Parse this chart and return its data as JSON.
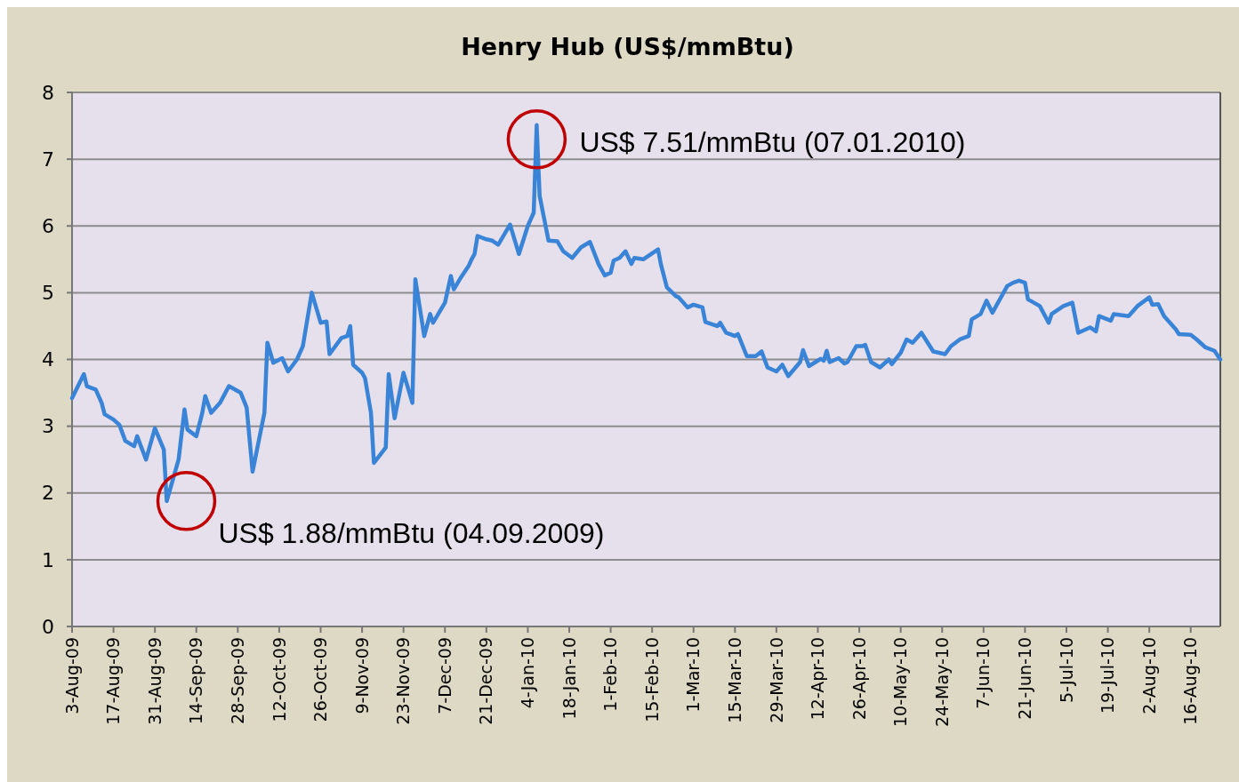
{
  "chart_data": {
    "type": "line",
    "title": "Henry Hub (US$/mmBtu)",
    "x": [
      "2009-08-03",
      "2009-08-05",
      "2009-08-07",
      "2009-08-08",
      "2009-08-11",
      "2009-08-13",
      "2009-08-14",
      "2009-08-17",
      "2009-08-19",
      "2009-08-21",
      "2009-08-24",
      "2009-08-25",
      "2009-08-28",
      "2009-08-31",
      "2009-09-03",
      "2009-09-04",
      "2009-09-08",
      "2009-09-10",
      "2009-09-11",
      "2009-09-14",
      "2009-09-16",
      "2009-09-17",
      "2009-09-19",
      "2009-09-22",
      "2009-09-25",
      "2009-09-29",
      "2009-10-01",
      "2009-10-03",
      "2009-10-07",
      "2009-10-08",
      "2009-10-10",
      "2009-10-13",
      "2009-10-15",
      "2009-10-18",
      "2009-10-20",
      "2009-10-23",
      "2009-10-26",
      "2009-10-28",
      "2009-10-29",
      "2009-11-02",
      "2009-11-04",
      "2009-11-05",
      "2009-11-06",
      "2009-11-09",
      "2009-11-10",
      "2009-11-12",
      "2009-11-13",
      "2009-11-17",
      "2009-11-18",
      "2009-11-20",
      "2009-11-23",
      "2009-11-26",
      "2009-11-27",
      "2009-11-30",
      "2009-12-02",
      "2009-12-03",
      "2009-12-07",
      "2009-12-09",
      "2009-12-10",
      "2009-12-12",
      "2009-12-15",
      "2009-12-16",
      "2009-12-17",
      "2009-12-18",
      "2009-12-21",
      "2009-12-23",
      "2009-12-25",
      "2009-12-29",
      "2010-01-01",
      "2010-01-04",
      "2010-01-06",
      "2010-01-07",
      "2010-01-08",
      "2010-01-11",
      "2010-01-14",
      "2010-01-16",
      "2010-01-19",
      "2010-01-22",
      "2010-01-25",
      "2010-01-28",
      "2010-01-30",
      "2010-02-01",
      "2010-02-02",
      "2010-02-04",
      "2010-02-06",
      "2010-02-08",
      "2010-02-09",
      "2010-02-12",
      "2010-02-17",
      "2010-02-18",
      "2010-02-20",
      "2010-02-23",
      "2010-02-24",
      "2010-02-27",
      "2010-03-01",
      "2010-03-04",
      "2010-03-05",
      "2010-03-09",
      "2010-03-10",
      "2010-03-12",
      "2010-03-15",
      "2010-03-16",
      "2010-03-19",
      "2010-03-22",
      "2010-03-24",
      "2010-03-26",
      "2010-03-29",
      "2010-03-31",
      "2010-04-02",
      "2010-04-06",
      "2010-04-07",
      "2010-04-09",
      "2010-04-13",
      "2010-04-14",
      "2010-04-15",
      "2010-04-16",
      "2010-04-19",
      "2010-04-21",
      "2010-04-22",
      "2010-04-25",
      "2010-04-27",
      "2010-04-28",
      "2010-04-30",
      "2010-05-03",
      "2010-05-06",
      "2010-05-07",
      "2010-05-10",
      "2010-05-12",
      "2010-05-14",
      "2010-05-17",
      "2010-05-21",
      "2010-05-25",
      "2010-05-27",
      "2010-05-30",
      "2010-06-02",
      "2010-06-03",
      "2010-06-06",
      "2010-06-08",
      "2010-06-10",
      "2010-06-15",
      "2010-06-17",
      "2010-06-19",
      "2010-06-21",
      "2010-06-22",
      "2010-06-26",
      "2010-06-29",
      "2010-06-30",
      "2010-07-04",
      "2010-07-07",
      "2010-07-09",
      "2010-07-13",
      "2010-07-15",
      "2010-07-16",
      "2010-07-20",
      "2010-07-21",
      "2010-07-26",
      "2010-07-29",
      "2010-08-02",
      "2010-08-03",
      "2010-08-05",
      "2010-08-07",
      "2010-08-11",
      "2010-08-12",
      "2010-08-16",
      "2010-08-18",
      "2010-08-21",
      "2010-08-24",
      "2010-08-26"
    ],
    "series": [
      {
        "color": "#3a84d8",
        "values": [
          3.42,
          3.6,
          3.78,
          3.6,
          3.55,
          3.35,
          3.18,
          3.1,
          3.02,
          2.78,
          2.7,
          2.85,
          2.5,
          2.97,
          2.65,
          1.88,
          2.5,
          3.25,
          2.95,
          2.85,
          3.2,
          3.45,
          3.2,
          3.35,
          3.6,
          3.5,
          3.28,
          2.32,
          3.2,
          4.25,
          3.95,
          4.02,
          3.82,
          4.0,
          4.2,
          5.0,
          4.55,
          4.57,
          4.08,
          4.32,
          4.35,
          4.5,
          3.92,
          3.8,
          3.72,
          3.2,
          2.45,
          2.68,
          3.78,
          3.12,
          3.8,
          3.35,
          5.2,
          4.35,
          4.68,
          4.55,
          4.85,
          5.25,
          5.05,
          5.2,
          5.4,
          5.5,
          5.58,
          5.85,
          5.8,
          5.78,
          5.72,
          6.02,
          5.58,
          6.0,
          6.2,
          7.51,
          6.45,
          5.78,
          5.77,
          5.62,
          5.52,
          5.68,
          5.76,
          5.42,
          5.26,
          5.3,
          5.48,
          5.52,
          5.62,
          5.43,
          5.52,
          5.5,
          5.65,
          5.42,
          5.08,
          4.95,
          4.93,
          4.78,
          4.82,
          4.78,
          4.56,
          4.5,
          4.55,
          4.4,
          4.35,
          4.38,
          4.05,
          4.05,
          4.12,
          3.88,
          3.82,
          3.92,
          3.75,
          3.96,
          4.14,
          3.9,
          4.01,
          3.98,
          4.13,
          3.96,
          4.02,
          3.94,
          3.96,
          4.2,
          4.2,
          4.22,
          3.96,
          3.88,
          4.0,
          3.93,
          4.1,
          4.3,
          4.25,
          4.4,
          4.12,
          4.08,
          4.2,
          4.3,
          4.35,
          4.6,
          4.68,
          4.88,
          4.7,
          5.1,
          5.15,
          5.18,
          5.15,
          4.9,
          4.8,
          4.55,
          4.68,
          4.8,
          4.85,
          4.4,
          4.48,
          4.42,
          4.65,
          4.58,
          4.68,
          4.65,
          4.8,
          4.93,
          4.82,
          4.83,
          4.65,
          4.45,
          4.38,
          4.37,
          4.3,
          4.18,
          4.13,
          4.0
        ]
      }
    ],
    "xlim": [
      "2009-08-03",
      "2010-08-26"
    ],
    "xticks": [
      {
        "value": "2009-08-03",
        "label": "3-Aug-09"
      },
      {
        "value": "2009-08-17",
        "label": "17-Aug-09"
      },
      {
        "value": "2009-08-31",
        "label": "31-Aug-09"
      },
      {
        "value": "2009-09-14",
        "label": "14-Sep-09"
      },
      {
        "value": "2009-09-28",
        "label": "28-Sep-09"
      },
      {
        "value": "2009-10-12",
        "label": "12-Oct-09"
      },
      {
        "value": "2009-10-26",
        "label": "26-Oct-09"
      },
      {
        "value": "2009-11-09",
        "label": "9-Nov-09"
      },
      {
        "value": "2009-11-23",
        "label": "23-Nov-09"
      },
      {
        "value": "2009-12-07",
        "label": "7-Dec-09"
      },
      {
        "value": "2009-12-21",
        "label": "21-Dec-09"
      },
      {
        "value": "2010-01-04",
        "label": "4-Jan-10"
      },
      {
        "value": "2010-01-18",
        "label": "18-Jan-10"
      },
      {
        "value": "2010-02-01",
        "label": "1-Feb-10"
      },
      {
        "value": "2010-02-15",
        "label": "15-Feb-10"
      },
      {
        "value": "2010-03-01",
        "label": "1-Mar-10"
      },
      {
        "value": "2010-03-15",
        "label": "15-Mar-10"
      },
      {
        "value": "2010-03-29",
        "label": "29-Mar-10"
      },
      {
        "value": "2010-04-12",
        "label": "12-Apr-10"
      },
      {
        "value": "2010-04-26",
        "label": "26-Apr-10"
      },
      {
        "value": "2010-05-10",
        "label": "10-May-10"
      },
      {
        "value": "2010-05-24",
        "label": "24-May-10"
      },
      {
        "value": "2010-06-07",
        "label": "7-Jun-10"
      },
      {
        "value": "2010-06-21",
        "label": "21-Jun-10"
      },
      {
        "value": "2010-07-05",
        "label": "5-Jul-10"
      },
      {
        "value": "2010-07-19",
        "label": "19-Jul-10"
      },
      {
        "value": "2010-08-02",
        "label": "2-Aug-10"
      },
      {
        "value": "2010-08-16",
        "label": "16-Aug-10"
      }
    ],
    "ylim": [
      0,
      8
    ],
    "yticks": [
      0,
      1,
      2,
      3,
      4,
      5,
      6,
      7,
      8
    ],
    "grid": "y",
    "annotations": [
      {
        "text": "US$ 1.88/mmBtu (04.09.2009)",
        "x": "2009-09-04",
        "y": 1.88
      },
      {
        "text": "US$ 7.51/mmBtu (07.01.2010)",
        "x": "2010-01-07",
        "y": 7.51
      }
    ]
  }
}
